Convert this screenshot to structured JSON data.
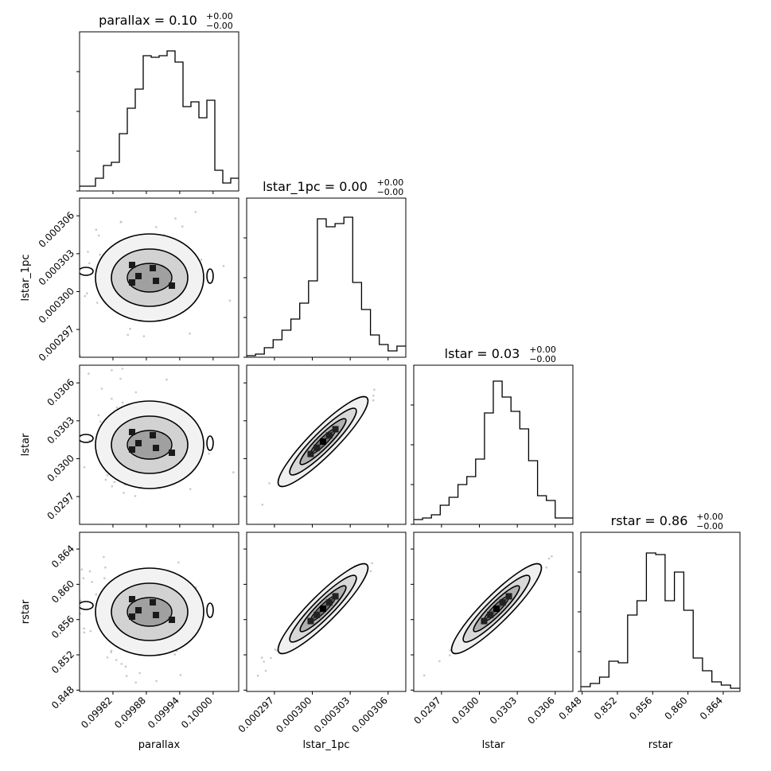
{
  "chart_data": {
    "type": "corner",
    "parameters": [
      "parallax",
      "lstar_1pc",
      "lstar",
      "rstar"
    ],
    "titles": [
      {
        "label": "parallax = 0.10",
        "sup": "+0.00",
        "sub": "−0.00"
      },
      {
        "label": "lstar_1pc = 0.00",
        "sup": "+0.00",
        "sub": "−0.00"
      },
      {
        "label": "lstar = 0.03",
        "sup": "+0.00",
        "sub": "−0.00"
      },
      {
        "label": "rstar = 0.86",
        "sup": "+0.00",
        "sub": "−0.00"
      }
    ],
    "xlabels": [
      "parallax",
      "lstar_1pc",
      "lstar",
      "rstar"
    ],
    "ylabels": [
      "lstar_1pc",
      "lstar",
      "rstar"
    ],
    "ranges": [
      [
        0.09976,
        0.100046
      ],
      [
        0.0002948,
        0.0003074
      ],
      [
        0.02948,
        0.03074
      ],
      [
        0.84785,
        0.8659
      ]
    ],
    "ticks": [
      {
        "values": [
          0.09982,
          0.09988,
          0.09994,
          0.1
        ],
        "labels": [
          "0.09982",
          "0.09988",
          "0.09994",
          "0.10000"
        ]
      },
      {
        "values": [
          0.000297,
          0.0003,
          0.000303,
          0.000306
        ],
        "labels": [
          "0.000297",
          "0.000300",
          "0.000303",
          "0.000306"
        ]
      },
      {
        "values": [
          0.0297,
          0.03,
          0.0303,
          0.0306
        ],
        "labels": [
          "0.0297",
          "0.0300",
          "0.0303",
          "0.0306"
        ]
      },
      {
        "values": [
          0.848,
          0.852,
          0.856,
          0.86,
          0.864
        ],
        "labels": [
          "0.848",
          "0.852",
          "0.856",
          "0.860",
          "0.864"
        ]
      }
    ],
    "histograms": [
      [
        0.03,
        0.03,
        0.08,
        0.16,
        0.18,
        0.36,
        0.52,
        0.64,
        0.85,
        0.84,
        0.85,
        0.88,
        0.81,
        0.53,
        0.56,
        0.46,
        0.57,
        0.13,
        0.05,
        0.08
      ],
      [
        0.01,
        0.02,
        0.06,
        0.11,
        0.17,
        0.24,
        0.34,
        0.48,
        0.87,
        0.82,
        0.84,
        0.88,
        0.47,
        0.3,
        0.14,
        0.08,
        0.04,
        0.07
      ],
      [
        0.03,
        0.04,
        0.06,
        0.12,
        0.17,
        0.25,
        0.3,
        0.41,
        0.7,
        0.9,
        0.8,
        0.71,
        0.6,
        0.4,
        0.18,
        0.15,
        0.04,
        0.04
      ],
      [
        0.03,
        0.05,
        0.09,
        0.19,
        0.18,
        0.48,
        0.57,
        0.87,
        0.86,
        0.57,
        0.75,
        0.51,
        0.21,
        0.13,
        0.06,
        0.04,
        0.02
      ]
    ],
    "grid": false
  }
}
